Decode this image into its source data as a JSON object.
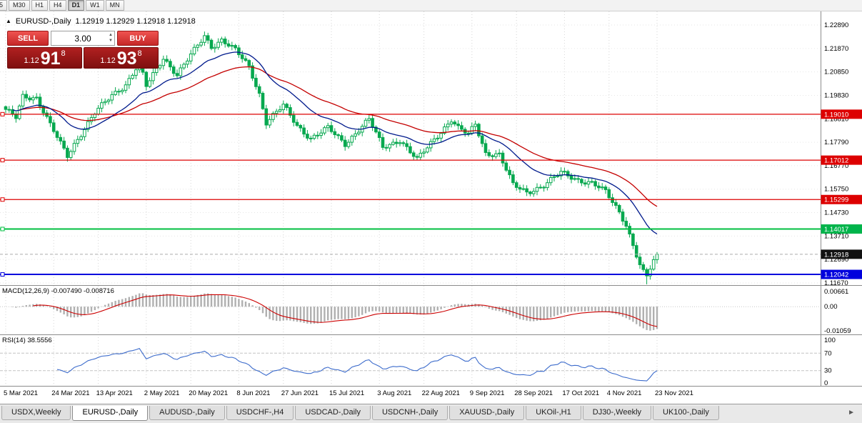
{
  "toolbar": {
    "timeframes": [
      "5",
      "M30",
      "H1",
      "H4",
      "D1",
      "W1",
      "MN"
    ],
    "active_index": 4
  },
  "chart_header": {
    "icon": "▲",
    "title": "EURUSD-,Daily",
    "quotes": "1.12919 1.12929 1.12918 1.12918"
  },
  "trade_panel": {
    "sell_label": "SELL",
    "buy_label": "BUY",
    "volume": "3.00",
    "bid_prefix": "1.12",
    "bid_big": "91",
    "bid_sup": "8",
    "ask_prefix": "1.12",
    "ask_big": "93",
    "ask_sup": "8"
  },
  "price_axis": {
    "labels": [
      "1.22890",
      "1.21870",
      "1.20850",
      "1.19830",
      "1.18810",
      "1.17790",
      "1.16770",
      "1.15750",
      "1.14730",
      "1.13710",
      "1.12690",
      "1.11670"
    ],
    "tags": [
      {
        "value": "1.19010",
        "price": 1.1901,
        "color": "#dd0000"
      },
      {
        "value": "1.17012",
        "price": 1.17012,
        "color": "#dd0000"
      },
      {
        "value": "1.15299",
        "price": 1.15299,
        "color": "#dd0000"
      },
      {
        "value": "1.14017",
        "price": 1.14017,
        "color": "#00b44b"
      },
      {
        "value": "1.12918",
        "price": 1.12918,
        "color": "#111111"
      },
      {
        "value": "1.12042",
        "price": 1.12042,
        "color": "#0000dd"
      }
    ]
  },
  "hlines": [
    {
      "price": 1.1901,
      "color": "#dd0000",
      "width": 1.2
    },
    {
      "price": 1.17012,
      "color": "#dd0000",
      "width": 1.2
    },
    {
      "price": 1.15299,
      "color": "#dd0000",
      "width": 1.2
    },
    {
      "price": 1.14017,
      "color": "#00bf40",
      "width": 2
    },
    {
      "price": 1.12042,
      "color": "#0000dd",
      "width": 2
    }
  ],
  "current_price": {
    "price": 1.12918,
    "label": "1.12918"
  },
  "macd_panel": {
    "label": "MACD(12,26,9) -0.007490 -0.008716",
    "axis_labels": [
      "0.00661",
      "0.00",
      "-0.01059"
    ],
    "axis_values": [
      0.00661,
      0,
      -0.01059
    ]
  },
  "rsi_panel": {
    "label": "RSI(14) 38.5556",
    "axis_labels": [
      "100",
      "70",
      "30",
      "0"
    ],
    "axis_values": [
      100,
      70,
      30,
      0
    ],
    "levels": [
      70,
      30
    ]
  },
  "x_axis": {
    "labels": [
      "5 Mar 2021",
      "24 Mar 2021",
      "13 Apr 2021",
      "2 May 2021",
      "20 May 2021",
      "8 Jun 2021",
      "27 Jun 2021",
      "15 Jul 2021",
      "3 Aug 2021",
      "22 Aug 2021",
      "9 Sep 2021",
      "28 Sep 2021",
      "17 Oct 2021",
      "4 Nov 2021",
      "23 Nov 2021"
    ]
  },
  "tabs": {
    "items": [
      "USDX,Weekly",
      "EURUSD-,Daily",
      "AUDUSD-,Daily",
      "USDCHF-,H4",
      "USDCAD-,Daily",
      "USDCNH-,Daily",
      "XAUUSD-,Daily",
      "UKOil-,H1",
      "DJ30-,Weekly",
      "UK100-,Daily"
    ],
    "active_index": 1,
    "scroll_right_icon": "►"
  },
  "chart_data": {
    "type": "candlestick",
    "symbol": "EURUSD-",
    "timeframe": "Daily",
    "bar_count": 191,
    "x_start_label": "5 Mar 2021",
    "x_end_label": "23 Nov 2021",
    "price_range_visible": [
      1.1158,
      1.2348
    ],
    "last_close": 1.12918,
    "close_anchors": [
      [
        0,
        1.1916
      ],
      [
        3,
        1.1888
      ],
      [
        5,
        1.1982
      ],
      [
        9,
        1.1972
      ],
      [
        13,
        1.1852
      ],
      [
        18,
        1.1722
      ],
      [
        20,
        1.1772
      ],
      [
        26,
        1.1905
      ],
      [
        31,
        1.1985
      ],
      [
        35,
        1.203
      ],
      [
        39,
        1.2122
      ],
      [
        41,
        1.2022
      ],
      [
        46,
        1.2148
      ],
      [
        50,
        1.2072
      ],
      [
        55,
        1.2178
      ],
      [
        58,
        1.2242
      ],
      [
        60,
        1.2196
      ],
      [
        63,
        1.2224
      ],
      [
        67,
        1.2178
      ],
      [
        71,
        1.2108
      ],
      [
        74,
        1.199
      ],
      [
        76,
        1.1866
      ],
      [
        81,
        1.1938
      ],
      [
        85,
        1.1852
      ],
      [
        89,
        1.1796
      ],
      [
        94,
        1.184
      ],
      [
        99,
        1.1772
      ],
      [
        104,
        1.185
      ],
      [
        106,
        1.1878
      ],
      [
        110,
        1.1756
      ],
      [
        115,
        1.179
      ],
      [
        120,
        1.1702
      ],
      [
        125,
        1.1792
      ],
      [
        130,
        1.1878
      ],
      [
        132,
        1.184
      ],
      [
        135,
        1.1812
      ],
      [
        137,
        1.1858
      ],
      [
        140,
        1.1732
      ],
      [
        144,
        1.1726
      ],
      [
        148,
        1.1592
      ],
      [
        152,
        1.1562
      ],
      [
        157,
        1.1592
      ],
      [
        162,
        1.1646
      ],
      [
        167,
        1.1616
      ],
      [
        171,
        1.1602
      ],
      [
        175,
        1.1562
      ],
      [
        179,
        1.1476
      ],
      [
        181,
        1.1422
      ],
      [
        183,
        1.1332
      ],
      [
        185,
        1.1246
      ],
      [
        187,
        1.1196
      ],
      [
        188,
        1.1228
      ],
      [
        189,
        1.1266
      ],
      [
        190,
        1.12918
      ]
    ],
    "overlays": {
      "ma_fast": {
        "period": 20,
        "color": "#001a8c"
      },
      "ma_slow": {
        "period": 45,
        "color": "#c40000"
      }
    },
    "indicators": {
      "macd": {
        "fast": 12,
        "slow": 26,
        "signal": 9,
        "value": -0.00749,
        "signal_value": -0.008716
      },
      "rsi": {
        "period": 14,
        "value": 38.5556
      }
    },
    "horizontal_lines": [
      1.1901,
      1.17012,
      1.15299,
      1.14017,
      1.12042
    ],
    "candle_up_color": "#07a84f",
    "candle_down_color": "#07a84f",
    "macd_histogram_color": "#b0b0b0",
    "macd_signal_color": "#cc0000",
    "rsi_line_color": "#3d6ccc"
  }
}
